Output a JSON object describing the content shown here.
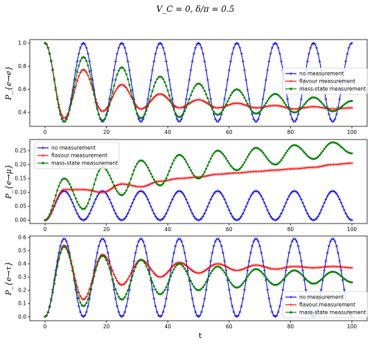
{
  "figure": {
    "title": "V_C = 0, δ/π = 0.5",
    "xlabel": "t"
  },
  "colors": {
    "no_measurement": "#0000ff",
    "flavour_measurement": "#ff0000",
    "mass_state_measurement": "#008000"
  },
  "chart_data": [
    {
      "type": "line",
      "ylabel": "P_{e→e}",
      "xlim": [
        0,
        100
      ],
      "ylim": [
        0.28,
        1.03
      ],
      "yticks": [
        0.4,
        0.6,
        0.8,
        1.0
      ],
      "ytick_labels": [
        "0.4",
        "0.6",
        "0.8",
        "1.0"
      ],
      "xticks": [
        0,
        20,
        40,
        60,
        80,
        100
      ],
      "xtick_labels": [
        "0",
        "20",
        "40",
        "60",
        "80",
        "100"
      ],
      "legend_position": "right",
      "series": [
        {
          "name": "no measurement",
          "marker": "+",
          "x": [
            0,
            6.25,
            12.5,
            18.75,
            25,
            31.25,
            37.5,
            43.75,
            50,
            56.25,
            62.5,
            68.75,
            75,
            81.25,
            87.5,
            93.75,
            100
          ],
          "y": [
            1.0,
            0.32,
            1.0,
            0.32,
            1.0,
            0.32,
            1.0,
            0.32,
            1.0,
            0.32,
            1.0,
            0.32,
            1.0,
            0.32,
            1.0,
            0.32,
            1.0
          ]
        },
        {
          "name": "flavour measurement",
          "marker": "+",
          "x": [
            0,
            6.25,
            12.5,
            18.75,
            25,
            31.25,
            37.5,
            43.75,
            50,
            56.25,
            62.5,
            68.75,
            75,
            81.25,
            87.5,
            93.75,
            100
          ],
          "y": [
            1.0,
            0.35,
            0.77,
            0.41,
            0.64,
            0.43,
            0.56,
            0.44,
            0.51,
            0.44,
            0.48,
            0.44,
            0.46,
            0.43,
            0.45,
            0.43,
            0.44
          ]
        },
        {
          "name": "mass-state measurement",
          "marker": "*",
          "x": [
            0,
            6.25,
            12.5,
            18.75,
            25,
            31.25,
            37.5,
            43.75,
            50,
            56.25,
            62.5,
            68.75,
            75,
            81.25,
            87.5,
            93.75,
            100
          ],
          "y": [
            1.0,
            0.32,
            0.88,
            0.33,
            0.79,
            0.35,
            0.71,
            0.36,
            0.65,
            0.38,
            0.6,
            0.39,
            0.56,
            0.4,
            0.53,
            0.41,
            0.5
          ]
        }
      ]
    },
    {
      "type": "line",
      "ylabel": "P_{e→μ}",
      "xlim": [
        0,
        100
      ],
      "ylim": [
        -0.012,
        0.29
      ],
      "yticks": [
        0.0,
        0.05,
        0.1,
        0.15,
        0.2,
        0.25
      ],
      "ytick_labels": [
        "0.00",
        "0.05",
        "0.10",
        "0.15",
        "0.20",
        "0.25"
      ],
      "xticks": [
        0,
        20,
        40,
        60,
        80,
        100
      ],
      "xtick_labels": [
        "0",
        "20",
        "40",
        "60",
        "80",
        "100"
      ],
      "legend_position": "upper left",
      "series": [
        {
          "name": "no measurement",
          "marker": "+",
          "x": [
            0,
            6.25,
            12.5,
            18.75,
            25,
            31.25,
            37.5,
            43.75,
            50,
            56.25,
            62.5,
            68.75,
            75,
            81.25,
            87.5,
            93.75,
            100
          ],
          "y": [
            0.0,
            0.105,
            0.0,
            0.105,
            0.0,
            0.105,
            0.0,
            0.105,
            0.0,
            0.105,
            0.0,
            0.105,
            0.0,
            0.105,
            0.0,
            0.105,
            0.0
          ]
        },
        {
          "name": "flavour measurement",
          "marker": "+",
          "x": [
            0,
            6.25,
            12.5,
            18.75,
            25,
            31.25,
            37.5,
            43.75,
            50,
            56.25,
            62.5,
            68.75,
            75,
            81.25,
            87.5,
            93.75,
            100
          ],
          "y": [
            0.0,
            0.11,
            0.11,
            0.1,
            0.13,
            0.12,
            0.14,
            0.15,
            0.155,
            0.165,
            0.17,
            0.175,
            0.18,
            0.185,
            0.19,
            0.2,
            0.205
          ]
        },
        {
          "name": "mass-state measurement",
          "marker": "*",
          "x": [
            0,
            6.25,
            12.5,
            18.75,
            25,
            31.25,
            37.5,
            43.75,
            50,
            56.25,
            62.5,
            68.75,
            75,
            81.25,
            87.5,
            93.75,
            100
          ],
          "y": [
            0.0,
            0.15,
            0.04,
            0.19,
            0.09,
            0.215,
            0.125,
            0.235,
            0.15,
            0.25,
            0.18,
            0.26,
            0.2,
            0.27,
            0.22,
            0.28,
            0.24
          ]
        }
      ]
    },
    {
      "type": "line",
      "ylabel": "P_{e→τ}",
      "xlim": [
        0,
        100
      ],
      "ylim": [
        -0.03,
        0.61
      ],
      "yticks": [
        0.0,
        0.1,
        0.2,
        0.3,
        0.4,
        0.5,
        0.6
      ],
      "ytick_labels": [
        "0.0",
        "0.1",
        "0.2",
        "0.3",
        "0.4",
        "0.5",
        "0.6"
      ],
      "xticks": [
        0,
        20,
        40,
        60,
        80,
        100
      ],
      "xtick_labels": [
        "0",
        "20",
        "40",
        "60",
        "80",
        "100"
      ],
      "legend_position": "lower right",
      "series": [
        {
          "name": "no measurement",
          "marker": "+",
          "x": [
            0,
            6.25,
            12.5,
            18.75,
            25,
            31.25,
            37.5,
            43.75,
            50,
            56.25,
            62.5,
            68.75,
            75,
            81.25,
            87.5,
            93.75,
            100
          ],
          "y": [
            0.0,
            0.59,
            0.0,
            0.59,
            0.0,
            0.59,
            0.0,
            0.59,
            0.0,
            0.59,
            0.0,
            0.59,
            0.0,
            0.59,
            0.0,
            0.59,
            0.0
          ]
        },
        {
          "name": "flavour measurement",
          "marker": "+",
          "x": [
            0,
            6.25,
            12.5,
            18.75,
            25,
            31.25,
            37.5,
            43.75,
            50,
            56.25,
            62.5,
            68.75,
            75,
            81.25,
            87.5,
            93.75,
            100
          ],
          "y": [
            0.0,
            0.54,
            0.13,
            0.47,
            0.24,
            0.43,
            0.3,
            0.41,
            0.33,
            0.4,
            0.35,
            0.39,
            0.36,
            0.38,
            0.37,
            0.38,
            0.37
          ]
        },
        {
          "name": "mass-state measurement",
          "marker": "*",
          "x": [
            0,
            6.25,
            12.5,
            18.75,
            25,
            31.25,
            37.5,
            43.75,
            50,
            56.25,
            62.5,
            68.75,
            75,
            81.25,
            87.5,
            93.75,
            100
          ],
          "y": [
            0.0,
            0.53,
            0.08,
            0.46,
            0.13,
            0.43,
            0.17,
            0.4,
            0.2,
            0.38,
            0.22,
            0.36,
            0.24,
            0.35,
            0.25,
            0.34,
            0.26
          ]
        }
      ]
    }
  ]
}
